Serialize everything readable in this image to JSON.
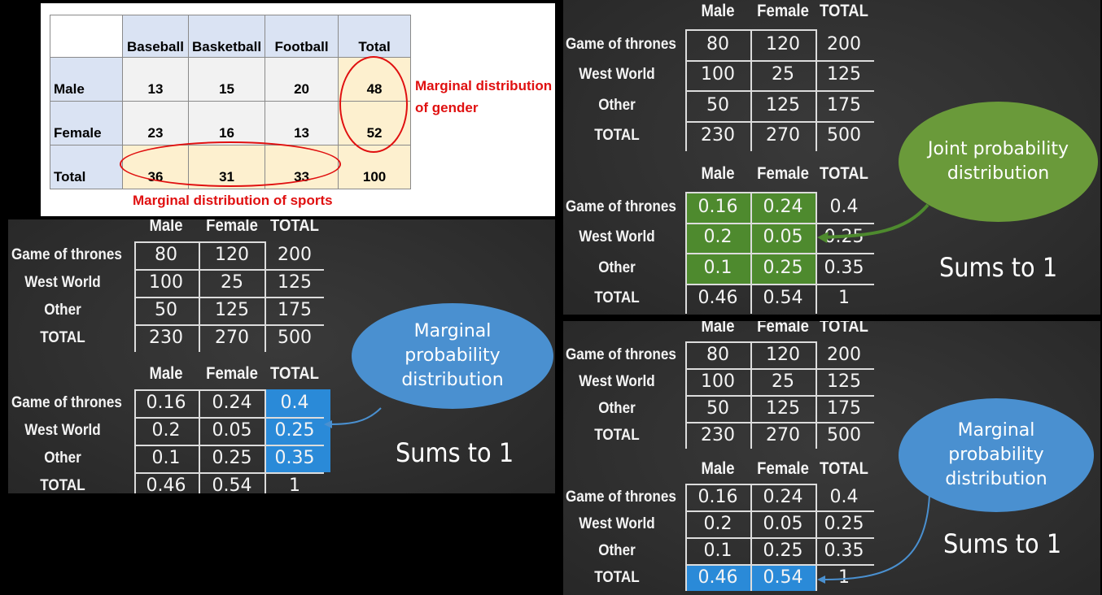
{
  "excel": {
    "headers": [
      "",
      "Baseball",
      "Basketball",
      "Football",
      "Total"
    ],
    "rows": [
      {
        "label": "Male",
        "values": [
          "13",
          "15",
          "20"
        ],
        "total": "48"
      },
      {
        "label": "Female",
        "values": [
          "23",
          "16",
          "13"
        ],
        "total": "52"
      },
      {
        "label": "Total",
        "values": [
          "36",
          "31",
          "33"
        ],
        "total": "100"
      }
    ],
    "annotation_gender": [
      "Marginal distribution",
      "of gender"
    ],
    "annotation_sports": "Marginal distribution of sports",
    "annotation_color": "#e01010"
  },
  "chalk_table": {
    "col_headers": [
      "Male",
      "Female",
      "TOTAL"
    ],
    "row_labels": [
      "Game of thrones",
      "West World",
      "Other",
      "TOTAL"
    ],
    "counts": [
      [
        "80",
        "120",
        "200"
      ],
      [
        "100",
        "25",
        "125"
      ],
      [
        "50",
        "125",
        "175"
      ],
      [
        "230",
        "270",
        "500"
      ]
    ],
    "probs": [
      [
        "0.16",
        "0.24",
        "0.4"
      ],
      [
        "0.2",
        "0.05",
        "0.25"
      ],
      [
        "0.1",
        "0.25",
        "0.35"
      ],
      [
        "0.46",
        "0.54",
        "1"
      ]
    ]
  },
  "panel_joint": {
    "bubble": "Joint probability distribution",
    "bubble_color": "#6a9a3a",
    "highlight_color": "#4e8a2e",
    "sums": "Sums to 1"
  },
  "panel_marginal_rows": {
    "bubble": "Marginal probability distribution",
    "bubble_color": "#4a90d0",
    "highlight_color": "#2a8ad8",
    "sums": "Sums to 1"
  },
  "panel_marginal_cols": {
    "bubble": "Marginal probability distribution",
    "bubble_color": "#4a90d0",
    "highlight_color": "#2a8ad8",
    "sums": "Sums to 1"
  }
}
